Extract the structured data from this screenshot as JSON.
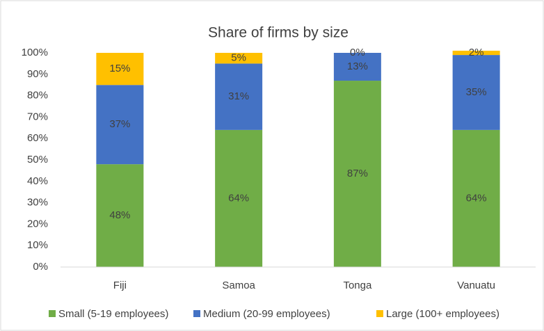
{
  "chart_data": {
    "type": "stacked_bar",
    "title": "Share of firms by size",
    "categories": [
      "Fiji",
      "Samoa",
      "Tonga",
      "Vanuatu"
    ],
    "series": [
      {
        "name": "Small (5-19 employees)",
        "color": "#70ad47",
        "values": [
          48,
          64,
          87,
          64
        ],
        "value_labels": [
          "48%",
          "64%",
          "87%",
          "64%"
        ]
      },
      {
        "name": "Medium (20-99 employees)",
        "color": "#4472c4",
        "values": [
          37,
          31,
          13,
          35
        ],
        "value_labels": [
          "37%",
          "31%",
          "13%",
          "35%"
        ]
      },
      {
        "name": "Large (100+ employees)",
        "color": "#ffc000",
        "values": [
          15,
          5,
          0,
          2
        ],
        "value_labels": [
          "15%",
          "5%",
          "0%",
          "2%"
        ]
      }
    ],
    "ylim": [
      0,
      100
    ],
    "yticks": [
      {
        "value": 0,
        "label": "0%"
      },
      {
        "value": 10,
        "label": "10%"
      },
      {
        "value": 20,
        "label": "20%"
      },
      {
        "value": 30,
        "label": "30%"
      },
      {
        "value": 40,
        "label": "40%"
      },
      {
        "value": 50,
        "label": "50%"
      },
      {
        "value": 60,
        "label": "60%"
      },
      {
        "value": 70,
        "label": "70%"
      },
      {
        "value": 80,
        "label": "80%"
      },
      {
        "value": 90,
        "label": "90%"
      },
      {
        "value": 100,
        "label": "100%"
      }
    ],
    "grid": false,
    "legend": "bottom"
  }
}
